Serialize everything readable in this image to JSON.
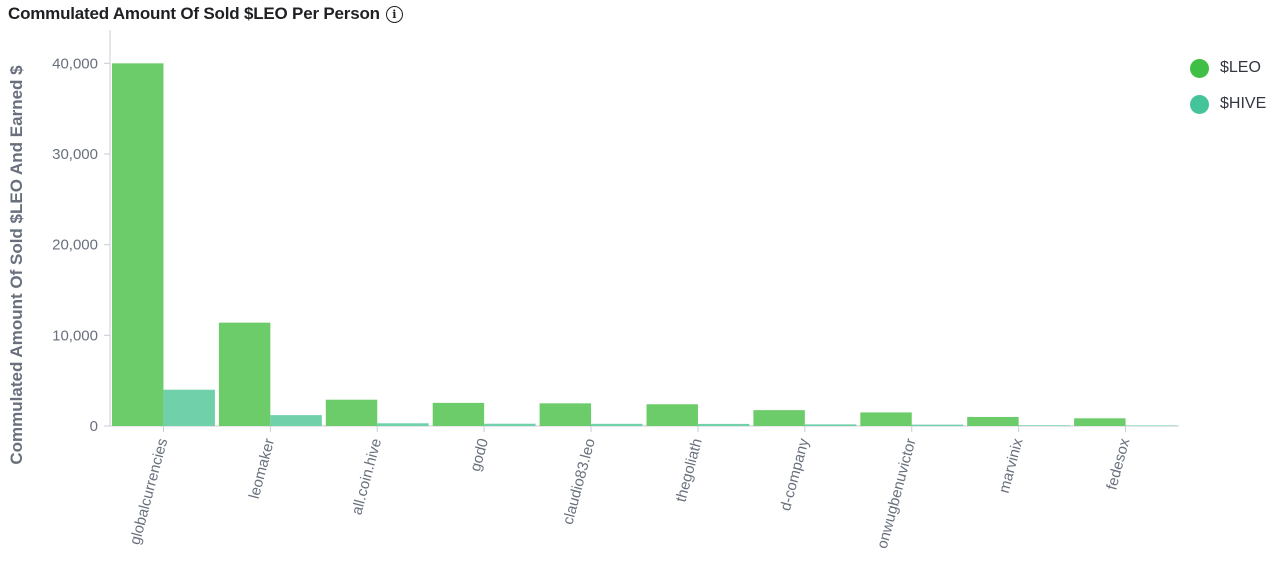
{
  "title": "Commulated Amount Of Sold $LEO Per Person",
  "info_icon": "info-icon",
  "colors": {
    "leo": "#6dcc6a",
    "hive": "#6fd0aa",
    "leo_legend": "#3fbf45",
    "hive_legend": "#45c39a",
    "axis": "#c9ccd3",
    "tick_text": "#69707d",
    "axis_title": "#69707d"
  },
  "chart_data": {
    "type": "bar",
    "title": "Commulated Amount Of Sold $LEO Per Person",
    "xlabel": "",
    "ylabel": "Commulated Amount Of Sold $LEO And Earned $",
    "ylim": [
      0,
      45000
    ],
    "yticks": [
      0,
      10000,
      20000,
      30000,
      40000
    ],
    "ytick_labels": [
      "0",
      "10,000",
      "20,000",
      "30,000",
      "40,000"
    ],
    "grid": false,
    "legend_position": "top-right",
    "categories": [
      "globalcurrencies",
      "leomaker",
      "all.coin.hive",
      "god0",
      "claudio83.leo",
      "thegoliath",
      "d-company",
      "onwugbenuvictor",
      "marvinix",
      "fedesox"
    ],
    "series": [
      {
        "name": "$LEO",
        "values": [
          40000,
          11400,
          2900,
          2550,
          2500,
          2400,
          1750,
          1500,
          1000,
          850
        ]
      },
      {
        "name": "$HIVE",
        "values": [
          4000,
          1200,
          300,
          250,
          240,
          230,
          180,
          150,
          80,
          60
        ]
      }
    ]
  }
}
